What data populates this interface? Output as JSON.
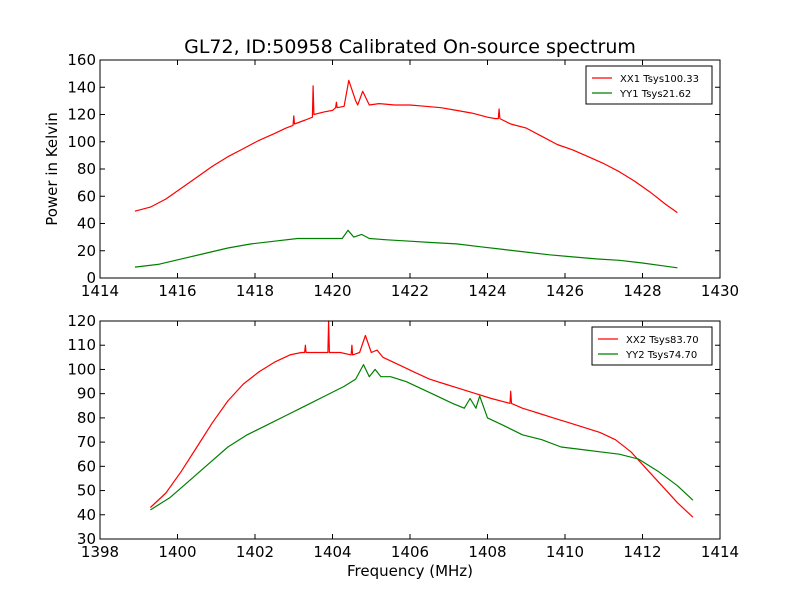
{
  "chart_data": [
    {
      "type": "line",
      "title": "GL72, ID:50958 Calibrated On-source spectrum",
      "xlabel": "",
      "ylabel": "Power in Kelvin",
      "xlim": [
        1414,
        1430
      ],
      "ylim": [
        0,
        160
      ],
      "xticks": [
        "1414",
        "1416",
        "1418",
        "1420",
        "1422",
        "1424",
        "1426",
        "1428",
        "1430"
      ],
      "yticks": [
        "0",
        "20",
        "40",
        "60",
        "80",
        "100",
        "120",
        "140",
        "160"
      ],
      "legend": "top-right",
      "series": [
        {
          "name": "XX1 Tsys100.33",
          "color": "#ff0000",
          "x": [
            1414.9,
            1415.3,
            1415.7,
            1416.1,
            1416.5,
            1416.9,
            1417.3,
            1417.7,
            1418.1,
            1418.5,
            1418.8,
            1418.98,
            1419.0,
            1419.02,
            1419.3,
            1419.48,
            1419.5,
            1419.52,
            1419.8,
            1420.0,
            1420.08,
            1420.1,
            1420.12,
            1420.3,
            1420.42,
            1420.6,
            1420.65,
            1420.78,
            1420.95,
            1421.2,
            1421.6,
            1422.0,
            1422.4,
            1422.8,
            1423.2,
            1423.6,
            1424.0,
            1424.2,
            1424.28,
            1424.3,
            1424.32,
            1424.6,
            1425.0,
            1425.4,
            1425.8,
            1426.2,
            1426.6,
            1427.0,
            1427.4,
            1427.8,
            1428.2,
            1428.6,
            1428.9
          ],
          "y": [
            49,
            52,
            58,
            66,
            74,
            82,
            89,
            95,
            101,
            106,
            110,
            112,
            119,
            113,
            116,
            118,
            141,
            120,
            122,
            123,
            125,
            129,
            125,
            126,
            145,
            130,
            127,
            137,
            127,
            128,
            127,
            127,
            126,
            125,
            123,
            121,
            118,
            117,
            117,
            124,
            117,
            113,
            110,
            104,
            98,
            94,
            89,
            84,
            78,
            71,
            63,
            54,
            48
          ]
        },
        {
          "name": "YY1 Tsys21.62",
          "color": "#008000",
          "x": [
            1414.9,
            1415.5,
            1416.1,
            1416.7,
            1417.3,
            1417.9,
            1418.5,
            1419.1,
            1419.7,
            1420.1,
            1420.25,
            1420.4,
            1420.55,
            1420.75,
            1420.95,
            1421.4,
            1422.0,
            1422.6,
            1423.2,
            1423.8,
            1424.4,
            1425.0,
            1425.6,
            1426.2,
            1426.8,
            1427.4,
            1428.0,
            1428.5,
            1428.9
          ],
          "y": [
            8,
            10,
            14,
            18,
            22,
            25,
            27,
            29,
            29,
            29,
            29,
            35,
            30,
            32,
            29,
            28,
            27,
            26,
            25,
            23,
            21,
            19,
            17,
            15.5,
            14,
            13,
            11,
            9,
            7.5
          ]
        }
      ]
    },
    {
      "type": "line",
      "title": "",
      "xlabel": "Frequency (MHz)",
      "ylabel": "",
      "xlim": [
        1398,
        1414
      ],
      "ylim": [
        30,
        120
      ],
      "xticks": [
        "1398",
        "1400",
        "1402",
        "1404",
        "1406",
        "1408",
        "1410",
        "1412",
        "1414"
      ],
      "yticks": [
        "30",
        "40",
        "50",
        "60",
        "70",
        "80",
        "90",
        "100",
        "110",
        "120"
      ],
      "legend": "top-right",
      "series": [
        {
          "name": "XX2 Tsys83.70",
          "color": "#ff0000",
          "x": [
            1399.3,
            1399.7,
            1400.1,
            1400.5,
            1400.9,
            1401.3,
            1401.7,
            1402.1,
            1402.5,
            1402.9,
            1403.2,
            1403.28,
            1403.3,
            1403.32,
            1403.6,
            1403.88,
            1403.9,
            1403.92,
            1404.2,
            1404.48,
            1404.5,
            1404.52,
            1404.7,
            1404.85,
            1405.0,
            1405.15,
            1405.3,
            1405.7,
            1406.1,
            1406.5,
            1406.9,
            1407.3,
            1407.7,
            1408.1,
            1408.58,
            1408.6,
            1408.62,
            1408.9,
            1409.1,
            1409.3,
            1409.7,
            1410.1,
            1410.5,
            1410.9,
            1411.3,
            1411.7,
            1412.1,
            1412.5,
            1412.9,
            1413.3
          ],
          "y": [
            43,
            49,
            58,
            68,
            78,
            87,
            94,
            99,
            103,
            106,
            107,
            107,
            110,
            107,
            107,
            107,
            120,
            107,
            107,
            106,
            110,
            106,
            107,
            114,
            107,
            108,
            105,
            102,
            99,
            96,
            94,
            92,
            90,
            88,
            86,
            91,
            86,
            84,
            83,
            82,
            80,
            78,
            76,
            74,
            71,
            66,
            59,
            52,
            45,
            39
          ]
        },
        {
          "name": "YY2 Tsys74.70",
          "color": "#008000",
          "x": [
            1399.3,
            1399.8,
            1400.3,
            1400.8,
            1401.3,
            1401.8,
            1402.3,
            1402.8,
            1403.3,
            1403.8,
            1404.3,
            1404.6,
            1404.8,
            1404.95,
            1405.1,
            1405.25,
            1405.5,
            1405.9,
            1406.3,
            1406.7,
            1407.1,
            1407.4,
            1407.55,
            1407.7,
            1407.8,
            1408.0,
            1408.4,
            1408.9,
            1409.4,
            1409.9,
            1410.4,
            1410.9,
            1411.4,
            1411.9,
            1412.4,
            1412.9,
            1413.3
          ],
          "y": [
            42,
            47,
            54,
            61,
            68,
            73,
            77,
            81,
            85,
            89,
            93,
            96,
            102,
            97,
            100,
            97,
            97,
            95,
            92,
            89,
            86,
            84,
            88,
            84,
            89,
            80,
            77,
            73,
            71,
            68,
            67,
            66,
            65,
            63,
            58,
            52,
            46
          ]
        }
      ]
    }
  ]
}
